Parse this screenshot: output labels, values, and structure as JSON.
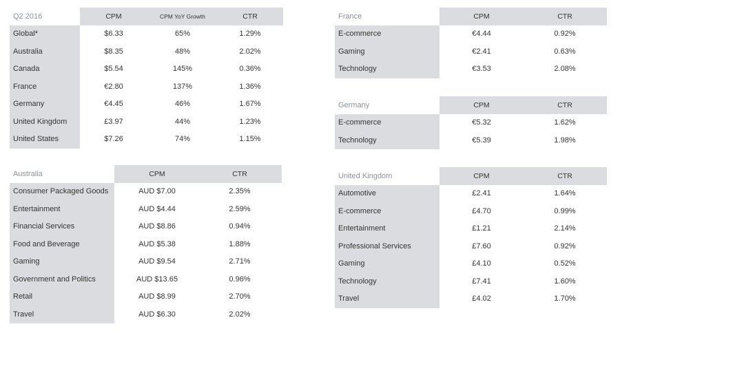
{
  "tables": [
    {
      "title": "Q2 2016",
      "columns": [
        "CPM",
        "CPM YoY Growth",
        "CTR"
      ],
      "rows": [
        {
          "label": "Global*",
          "values": [
            "$6.33",
            "65%",
            "1.29%"
          ]
        },
        {
          "label": "Australia",
          "values": [
            "$8.35",
            "48%",
            "2.02%"
          ]
        },
        {
          "label": "Canada",
          "values": [
            "$5.54",
            "145%",
            "0.36%"
          ]
        },
        {
          "label": "France",
          "values": [
            "€2.80",
            "137%",
            "1.36%"
          ]
        },
        {
          "label": "Germany",
          "values": [
            "€4.45",
            "46%",
            "1.67%"
          ]
        },
        {
          "label": "United Kingdom",
          "values": [
            "£3.97",
            "44%",
            "1.23%"
          ]
        },
        {
          "label": "United States",
          "values": [
            "$7.26",
            "74%",
            "1.15%"
          ]
        }
      ]
    },
    {
      "title": "Australia",
      "columns": [
        "CPM",
        "CTR"
      ],
      "rows": [
        {
          "label": "Consumer Packaged Goods",
          "values": [
            "AUD $7.00",
            "2.35%"
          ]
        },
        {
          "label": "Entertainment",
          "values": [
            "AUD $4.44",
            "2.59%"
          ]
        },
        {
          "label": "Financial Services",
          "values": [
            "AUD $8.86",
            "0.94%"
          ]
        },
        {
          "label": "Food and Beverage",
          "values": [
            "AUD $5.38",
            "1.88%"
          ]
        },
        {
          "label": "Gaming",
          "values": [
            "AUD $9.54",
            "2.71%"
          ]
        },
        {
          "label": "Government and Politics",
          "values": [
            "AUD $13.65",
            "0.96%"
          ]
        },
        {
          "label": "Retail",
          "values": [
            "AUD $8.99",
            "2.70%"
          ]
        },
        {
          "label": "Travel",
          "values": [
            "AUD $6.30",
            "2.02%"
          ]
        }
      ]
    },
    {
      "title": "France",
      "columns": [
        "CPM",
        "CTR"
      ],
      "rows": [
        {
          "label": "E-commerce",
          "values": [
            "€4.44",
            "0.92%"
          ]
        },
        {
          "label": "Gaming",
          "values": [
            "€2.41",
            "0.63%"
          ]
        },
        {
          "label": "Technology",
          "values": [
            "€3.53",
            "2.08%"
          ]
        }
      ]
    },
    {
      "title": "Germany",
      "columns": [
        "CPM",
        "CTR"
      ],
      "rows": [
        {
          "label": "E-commerce",
          "values": [
            "€5.32",
            "1.62%"
          ]
        },
        {
          "label": "Technology",
          "values": [
            "€5.39",
            "1.98%"
          ]
        }
      ]
    },
    {
      "title": "United Kingdom",
      "columns": [
        "CPM",
        "CTR"
      ],
      "rows": [
        {
          "label": "Automotive",
          "values": [
            "£2.41",
            "1.64%"
          ]
        },
        {
          "label": "E-commerce",
          "values": [
            "£4.70",
            "0.99%"
          ]
        },
        {
          "label": "Entertainment",
          "values": [
            "£1.21",
            "2.14%"
          ]
        },
        {
          "label": "Professional Services",
          "values": [
            "£7.60",
            "0.92%"
          ]
        },
        {
          "label": "Gaming",
          "values": [
            "£4.10",
            "0.52%"
          ]
        },
        {
          "label": "Technology",
          "values": [
            "£7.41",
            "1.60%"
          ]
        },
        {
          "label": "Travel",
          "values": [
            "£4.02",
            "1.70%"
          ]
        }
      ]
    }
  ]
}
